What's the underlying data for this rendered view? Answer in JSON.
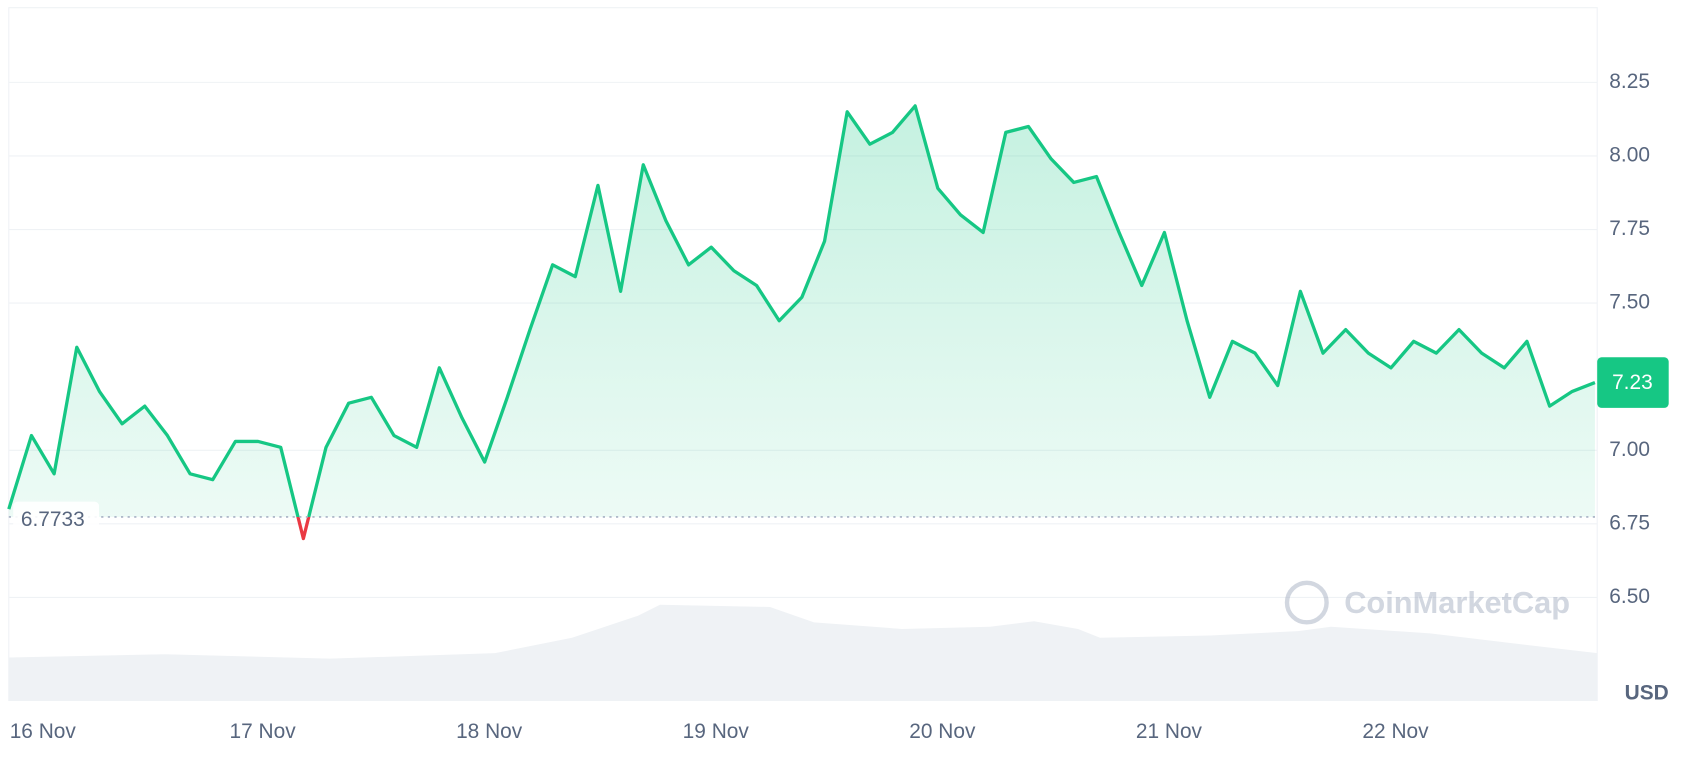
{
  "chart_data": {
    "type": "line",
    "x": [
      0.0,
      0.1,
      0.2,
      0.3,
      0.4,
      0.5,
      0.6,
      0.7,
      0.8,
      0.9,
      1.0,
      1.1,
      1.2,
      1.3,
      1.4,
      1.5,
      1.6,
      1.7,
      1.8,
      1.9,
      2.0,
      2.1,
      2.2,
      2.3,
      2.4,
      2.5,
      2.6,
      2.7,
      2.8,
      2.9,
      3.0,
      3.1,
      3.2,
      3.3,
      3.4,
      3.5,
      3.6,
      3.7,
      3.8,
      3.9,
      4.0,
      4.1,
      4.2,
      4.3,
      4.4,
      4.5,
      4.6,
      4.7,
      4.8,
      4.9,
      5.0,
      5.1,
      5.2,
      5.3,
      5.4,
      5.5,
      5.6,
      5.7,
      5.8,
      5.9,
      6.0,
      6.1,
      6.2,
      6.3,
      6.4,
      6.5,
      6.6,
      6.7,
      6.8,
      6.9,
      7.0
    ],
    "series": [
      {
        "color": "#16c784",
        "values": [
          6.8,
          7.05,
          6.92,
          7.35,
          7.2,
          7.09,
          7.15,
          7.05,
          6.92,
          6.9,
          7.03,
          7.03,
          7.01,
          6.7,
          7.01,
          7.16,
          7.18,
          7.05,
          7.01,
          7.28,
          7.11,
          6.96,
          7.18,
          7.41,
          7.63,
          7.59,
          7.9,
          7.54,
          7.97,
          7.78,
          7.63,
          7.69,
          7.61,
          7.56,
          7.44,
          7.52,
          7.71,
          8.15,
          8.04,
          8.08,
          8.17,
          7.89,
          7.8,
          7.74,
          8.08,
          8.1,
          7.99,
          7.91,
          7.93,
          7.74,
          7.56,
          7.74,
          7.44,
          7.18,
          7.37,
          7.33,
          7.22,
          7.54,
          7.33,
          7.41,
          7.33,
          7.28,
          7.37,
          7.33,
          7.41,
          7.33,
          7.28,
          7.37,
          7.15,
          7.2,
          7.23
        ]
      }
    ],
    "below_color": "#ea3943",
    "reference_line": 6.7733,
    "current_price": 7.23,
    "unit": "USD",
    "watermark": "CoinMarketCap",
    "xlim": [
      0,
      7.01
    ],
    "xticks": [
      {
        "value": 0.15,
        "label": "16 Nov"
      },
      {
        "value": 1.12,
        "label": "17 Nov"
      },
      {
        "value": 2.12,
        "label": "18 Nov"
      },
      {
        "value": 3.12,
        "label": "19 Nov"
      },
      {
        "value": 4.12,
        "label": "20 Nov"
      },
      {
        "value": 5.12,
        "label": "21 Nov"
      },
      {
        "value": 6.12,
        "label": "22 Nov"
      }
    ],
    "ylim": [
      6.15,
      8.5
    ],
    "yticks": [
      {
        "value": 6.5,
        "label": "6.50"
      },
      6.75,
      {
        "value": 7,
        "label": "7.00"
      },
      {
        "value": 7.5,
        "label": "7.50"
      },
      7.75,
      {
        "value": 8,
        "label": "8.00"
      },
      8.25
    ],
    "grid": true
  }
}
